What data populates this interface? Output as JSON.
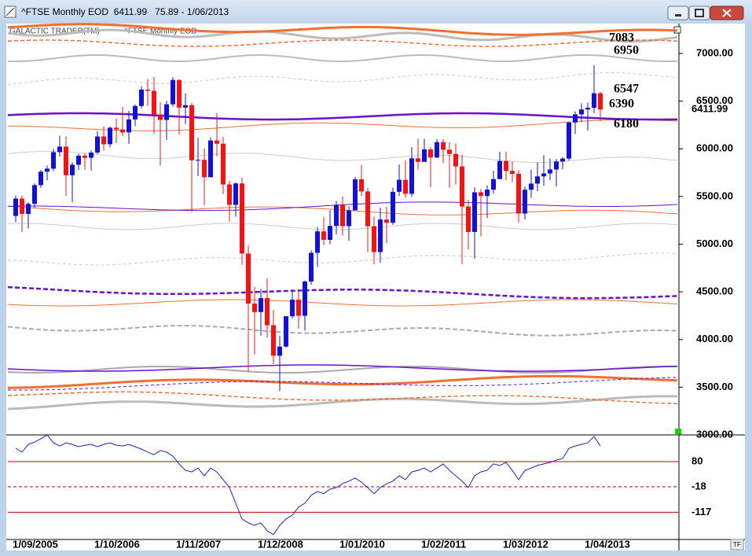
{
  "window": {
    "title": "^FTSE Monthly EOD  6411.99   75.89 - 1/06/2013",
    "legend_left": "GALACTIC TRADER(TM)",
    "legend_right": "^FTSE Monthly EOD",
    "corner_button": "TF"
  },
  "chart_data": [
    {
      "type": "candlestick",
      "x": [
        "1/09/2005",
        "1/10/2005",
        "1/11/2005",
        "1/12/2005",
        "1/01/2006",
        "1/02/2006",
        "1/03/2006",
        "1/04/2006",
        "1/05/2006",
        "1/06/2006",
        "1/07/2006",
        "1/08/2006",
        "1/09/2006",
        "1/10/2006",
        "1/11/2006",
        "1/12/2006",
        "1/01/2007",
        "1/02/2007",
        "1/03/2007",
        "1/04/2007",
        "1/05/2007",
        "1/06/2007",
        "1/07/2007",
        "1/08/2007",
        "1/09/2007",
        "1/10/2007",
        "1/11/2007",
        "1/12/2007",
        "1/01/2008",
        "1/02/2008",
        "1/03/2008",
        "1/04/2008",
        "1/05/2008",
        "1/06/2008",
        "1/07/2008",
        "1/08/2008",
        "1/09/2008",
        "1/10/2008",
        "1/11/2008",
        "1/12/2008",
        "1/01/2009",
        "1/02/2009",
        "1/03/2009",
        "1/04/2009",
        "1/05/2009",
        "1/06/2009",
        "1/07/2009",
        "1/08/2009",
        "1/09/2009",
        "1/10/2009",
        "1/11/2009",
        "1/12/2009",
        "1/01/2010",
        "1/02/2010",
        "1/03/2010",
        "1/04/2010",
        "1/05/2010",
        "1/06/2010",
        "1/07/2010",
        "1/08/2010",
        "1/09/2010",
        "1/10/2010",
        "1/11/2010",
        "1/12/2010",
        "1/01/2011",
        "1/02/2011",
        "1/03/2011",
        "1/04/2011",
        "1/05/2011",
        "1/06/2011",
        "1/07/2011",
        "1/08/2011",
        "1/09/2011",
        "1/10/2011",
        "1/11/2011",
        "1/12/2011",
        "1/01/2012",
        "1/02/2012",
        "1/03/2012",
        "1/04/2012",
        "1/05/2012",
        "1/06/2012",
        "1/07/2012",
        "1/08/2012",
        "1/09/2012",
        "1/10/2012",
        "1/11/2012",
        "1/12/2012",
        "1/01/2013",
        "1/02/2013",
        "1/03/2013",
        "1/04/2013",
        "1/05/2013",
        "1/06/2013"
      ],
      "xticks": [
        "1/09/2005",
        "1/10/2006",
        "1/11/2007",
        "1/12/2008",
        "1/01/2010",
        "1/02/2011",
        "1/03/2012",
        "1/04/2013"
      ],
      "open": [
        5296,
        5478,
        5317,
        5423,
        5619,
        5760,
        5792,
        5965,
        6023,
        5723,
        5833,
        5928,
        5906,
        5961,
        6129,
        6048,
        6221,
        6203,
        6172,
        6308,
        6449,
        6621,
        6608,
        6360,
        6303,
        6467,
        6722,
        6432,
        6457,
        5880,
        5884,
        5702,
        6087,
        6053,
        5626,
        5412,
        5637,
        4902,
        4377,
        4288,
        4434,
        4150,
        3830,
        3926,
        4244,
        4418,
        4249,
        4608,
        4909,
        5134,
        5045,
        5191,
        5413,
        5189,
        5355,
        5680,
        5553,
        5188,
        4917,
        5258,
        5225,
        5549,
        5675,
        5528,
        5900,
        5863,
        5994,
        5909,
        6070,
        5990,
        5946,
        5815,
        5395,
        5128,
        5544,
        5505,
        5572,
        5682,
        5872,
        5768,
        5738,
        5321,
        5571,
        5635,
        5711,
        5742,
        5783,
        5867,
        5898,
        6276,
        6361,
        6412,
        6430,
        6583
      ],
      "high": [
        5512,
        5509,
        5440,
        5638,
        5779,
        5824,
        6000,
        6137,
        6132,
        5859,
        5950,
        5951,
        5983,
        6185,
        6235,
        6233,
        6315,
        6440,
        6399,
        6465,
        6656,
        6732,
        6754,
        6490,
        6503,
        6751,
        6730,
        6581,
        6480,
        6115,
        6004,
        6118,
        6376,
        6122,
        5666,
        5647,
        5696,
        4985,
        4552,
        4531,
        4639,
        4307,
        4040,
        4244,
        4507,
        4506,
        4619,
        4935,
        5181,
        5282,
        5356,
        5453,
        5500,
        5396,
        5706,
        5833,
        5589,
        5289,
        5384,
        5392,
        5590,
        5836,
        5880,
        6017,
        6106,
        6105,
        6017,
        6101,
        6103,
        6070,
        6055,
        5940,
        5465,
        5596,
        5576,
        5615,
        5770,
        5969,
        5970,
        5865,
        5778,
        5604,
        5783,
        5854,
        5934,
        5900,
        5894,
        5913,
        6283,
        6389,
        6478,
        6484,
        6876,
        6597
      ],
      "low": [
        5230,
        5130,
        5165,
        5381,
        5591,
        5670,
        5766,
        5920,
        5507,
        5438,
        5778,
        5780,
        5773,
        5945,
        5983,
        6013,
        6058,
        6134,
        6052,
        6238,
        6425,
        6446,
        6160,
        5823,
        6093,
        6442,
        6150,
        6260,
        5339,
        5714,
        5410,
        5701,
        5922,
        5527,
        5235,
        5288,
        4784,
        3665,
        3844,
        4041,
        4021,
        3742,
        3460,
        3914,
        4222,
        4114,
        4093,
        4574,
        4761,
        4992,
        4999,
        5104,
        5093,
        5037,
        5358,
        5506,
        4915,
        4790,
        4805,
        5012,
        5203,
        5507,
        5485,
        5498,
        5780,
        5877,
        5599,
        5904,
        5849,
        5593,
        5626,
        4791,
        4944,
        4849,
        5082,
        5275,
        5528,
        5682,
        5671,
        5650,
        5228,
        5260,
        5486,
        5555,
        5612,
        5668,
        5605,
        5785,
        5877,
        6155,
        6278,
        6191,
        6373,
        6289
      ],
      "close": [
        5478,
        5317,
        5423,
        5619,
        5760,
        5792,
        5965,
        6023,
        5723,
        5833,
        5928,
        5906,
        5961,
        6129,
        6048,
        6221,
        6203,
        6172,
        6308,
        6449,
        6621,
        6608,
        6360,
        6303,
        6467,
        6722,
        6432,
        6457,
        5880,
        5884,
        5702,
        6087,
        6053,
        5626,
        5412,
        5637,
        4902,
        4377,
        4288,
        4434,
        4150,
        3830,
        3926,
        4244,
        4418,
        4249,
        4608,
        4909,
        5134,
        5045,
        5191,
        5413,
        5189,
        5355,
        5680,
        5553,
        5188,
        4917,
        5258,
        5225,
        5549,
        5675,
        5528,
        5900,
        5863,
        5994,
        5909,
        6070,
        5990,
        5946,
        5815,
        5395,
        5128,
        5544,
        5505,
        5572,
        5682,
        5872,
        5768,
        5738,
        5321,
        5571,
        5635,
        5711,
        5742,
        5783,
        5867,
        5898,
        6276,
        6361,
        6412,
        6430,
        6583,
        6411.99
      ],
      "up_color": "#1010e0",
      "down_color": "#ff1010",
      "ylim": [
        3000,
        7313
      ],
      "yticks": [
        {
          "value": 3000,
          "label": "3000.00"
        },
        {
          "value": 3500,
          "label": "3500.00"
        },
        {
          "value": 4000,
          "label": "4000.00"
        },
        {
          "value": 4500,
          "label": "4500.00"
        },
        {
          "value": 5000,
          "label": "5000.00"
        },
        {
          "value": 5500,
          "label": "5500.00"
        },
        {
          "value": 6000,
          "label": "6000.00"
        },
        {
          "value": 6500,
          "label": "6500.00"
        },
        {
          "value": 7000,
          "label": "7000.00"
        }
      ],
      "levels": [
        7083,
        6950,
        6547,
        6390,
        6180
      ]
    },
    {
      "type": "line",
      "color": "#2020c0",
      "values": [
        132,
        117,
        147,
        156,
        169,
        184,
        153,
        141,
        153,
        147,
        138,
        144,
        147,
        138,
        147,
        153,
        144,
        141,
        147,
        138,
        129,
        117,
        107,
        123,
        117,
        101,
        71,
        46,
        40,
        55,
        25,
        55,
        40,
        10,
        -21,
        -82,
        -143,
        -158,
        -168,
        -158,
        -189,
        -204,
        -168,
        -143,
        -128,
        -97,
        -82,
        -51,
        -36,
        -45,
        -27,
        -21,
        -6,
        4,
        16,
        0,
        -21,
        -45,
        -21,
        -6,
        4,
        25,
        10,
        40,
        46,
        55,
        40,
        55,
        71,
        46,
        25,
        4,
        -21,
        25,
        40,
        46,
        71,
        65,
        77,
        46,
        10,
        46,
        55,
        65,
        71,
        77,
        86,
        92,
        132,
        141,
        147,
        153,
        178,
        141
      ],
      "ylim": [
        -223,
        184
      ],
      "yticks": [
        80,
        -18,
        -117
      ],
      "tick_color": "#c00000"
    }
  ]
}
